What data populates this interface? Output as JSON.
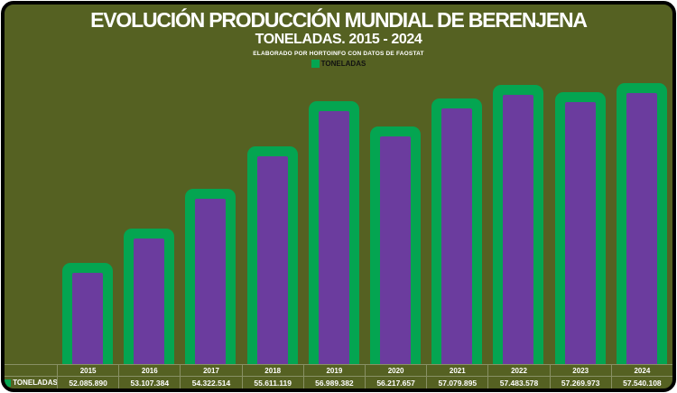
{
  "header": {
    "title": "EVOLUCIÓN PRODUCCIÓN MUNDIAL DE BERENJENA",
    "subtitle": "TONELADAS. 2015 - 2024",
    "source": "ELABORADO POR HORTOINFO CON DATOS DE FAOSTAT"
  },
  "legend": {
    "label": "TONELADAS"
  },
  "colors": {
    "background": "#556122",
    "bar_fill": "#6B3C9E",
    "bar_border": "#04A551",
    "gridline": "rgba(255,255,255,0.30)",
    "text": "#FFFFFF",
    "legend_text": "#111111",
    "frame": "#000000"
  },
  "chart_data": {
    "type": "bar",
    "title": "EVOLUCIÓN PRODUCCIÓN MUNDIAL DE BERENJENA",
    "subtitle": "TONELADAS. 2015 - 2024",
    "source_note": "ELABORADO POR HORTOINFO CON DATOS DE FAOSTAT",
    "ylabel": "TONELADAS",
    "legend_entries": [
      "TONELADAS"
    ],
    "legend_position": "top-center",
    "grid": false,
    "categories": [
      "2015",
      "2016",
      "2017",
      "2018",
      "2019",
      "2020",
      "2021",
      "2022",
      "2023",
      "2024"
    ],
    "values": [
      52085890,
      53107384,
      54322514,
      55611119,
      56989382,
      56217657,
      57079895,
      57483578,
      57269973,
      57540108
    ],
    "value_labels": [
      "52.085.890",
      "53.107.384",
      "54.322.514",
      "55.611.119",
      "56.989.382",
      "56.217.657",
      "57.079.895",
      "57.483.578",
      "57.269.973",
      "57.540.108"
    ],
    "ylim": [
      49000000,
      58000000
    ]
  }
}
